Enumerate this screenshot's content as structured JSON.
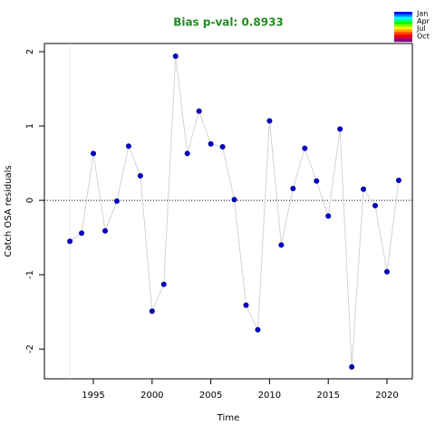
{
  "chart_data": {
    "type": "line",
    "title": "Bias p-val: 0.8933",
    "title_color": "#228b22",
    "x_label": "Time",
    "y_label": "Catch OSA residuals",
    "x": [
      1993,
      1994,
      1995,
      1996,
      1997,
      1998,
      1999,
      2000,
      2001,
      2002,
      2003,
      2004,
      2005,
      2006,
      2007,
      2008,
      2009,
      2010,
      2011,
      2012,
      2013,
      2014,
      2015,
      2016,
      2017,
      2018,
      2019,
      2020,
      2021
    ],
    "series": [
      {
        "color": "#0000cd",
        "line_color": "#d3d3d3",
        "values": [
          -0.55,
          -0.44,
          0.63,
          -0.41,
          -0.01,
          0.73,
          0.33,
          -1.49,
          -1.13,
          1.94,
          0.63,
          1.2,
          0.76,
          0.72,
          0.01,
          -1.41,
          -1.74,
          1.07,
          -0.6,
          0.16,
          0.7,
          0.26,
          -0.21,
          0.96,
          -2.24,
          0.15,
          -0.07,
          -0.96,
          0.27
        ]
      }
    ],
    "xlim": [
      1990.83,
      2022.16
    ],
    "ylim": [
      -2.4,
      2.11
    ],
    "xticks": [
      1995,
      2000,
      2005,
      2010,
      2015,
      2020
    ],
    "yticks": [
      -2,
      -1,
      0,
      1,
      2
    ],
    "hline": 0,
    "vline": 1993,
    "legend_labels": [
      "Jan",
      "Apr",
      "Jul",
      "Oct"
    ],
    "legend_colors": [
      "#0000ff",
      "#0080ff",
      "#00ffff",
      "#00ff80",
      "#00ff00",
      "#80ff00",
      "#ffff00",
      "#ffaa00",
      "#ff5500",
      "#ff0000",
      "#cc0044",
      "#800080"
    ]
  }
}
